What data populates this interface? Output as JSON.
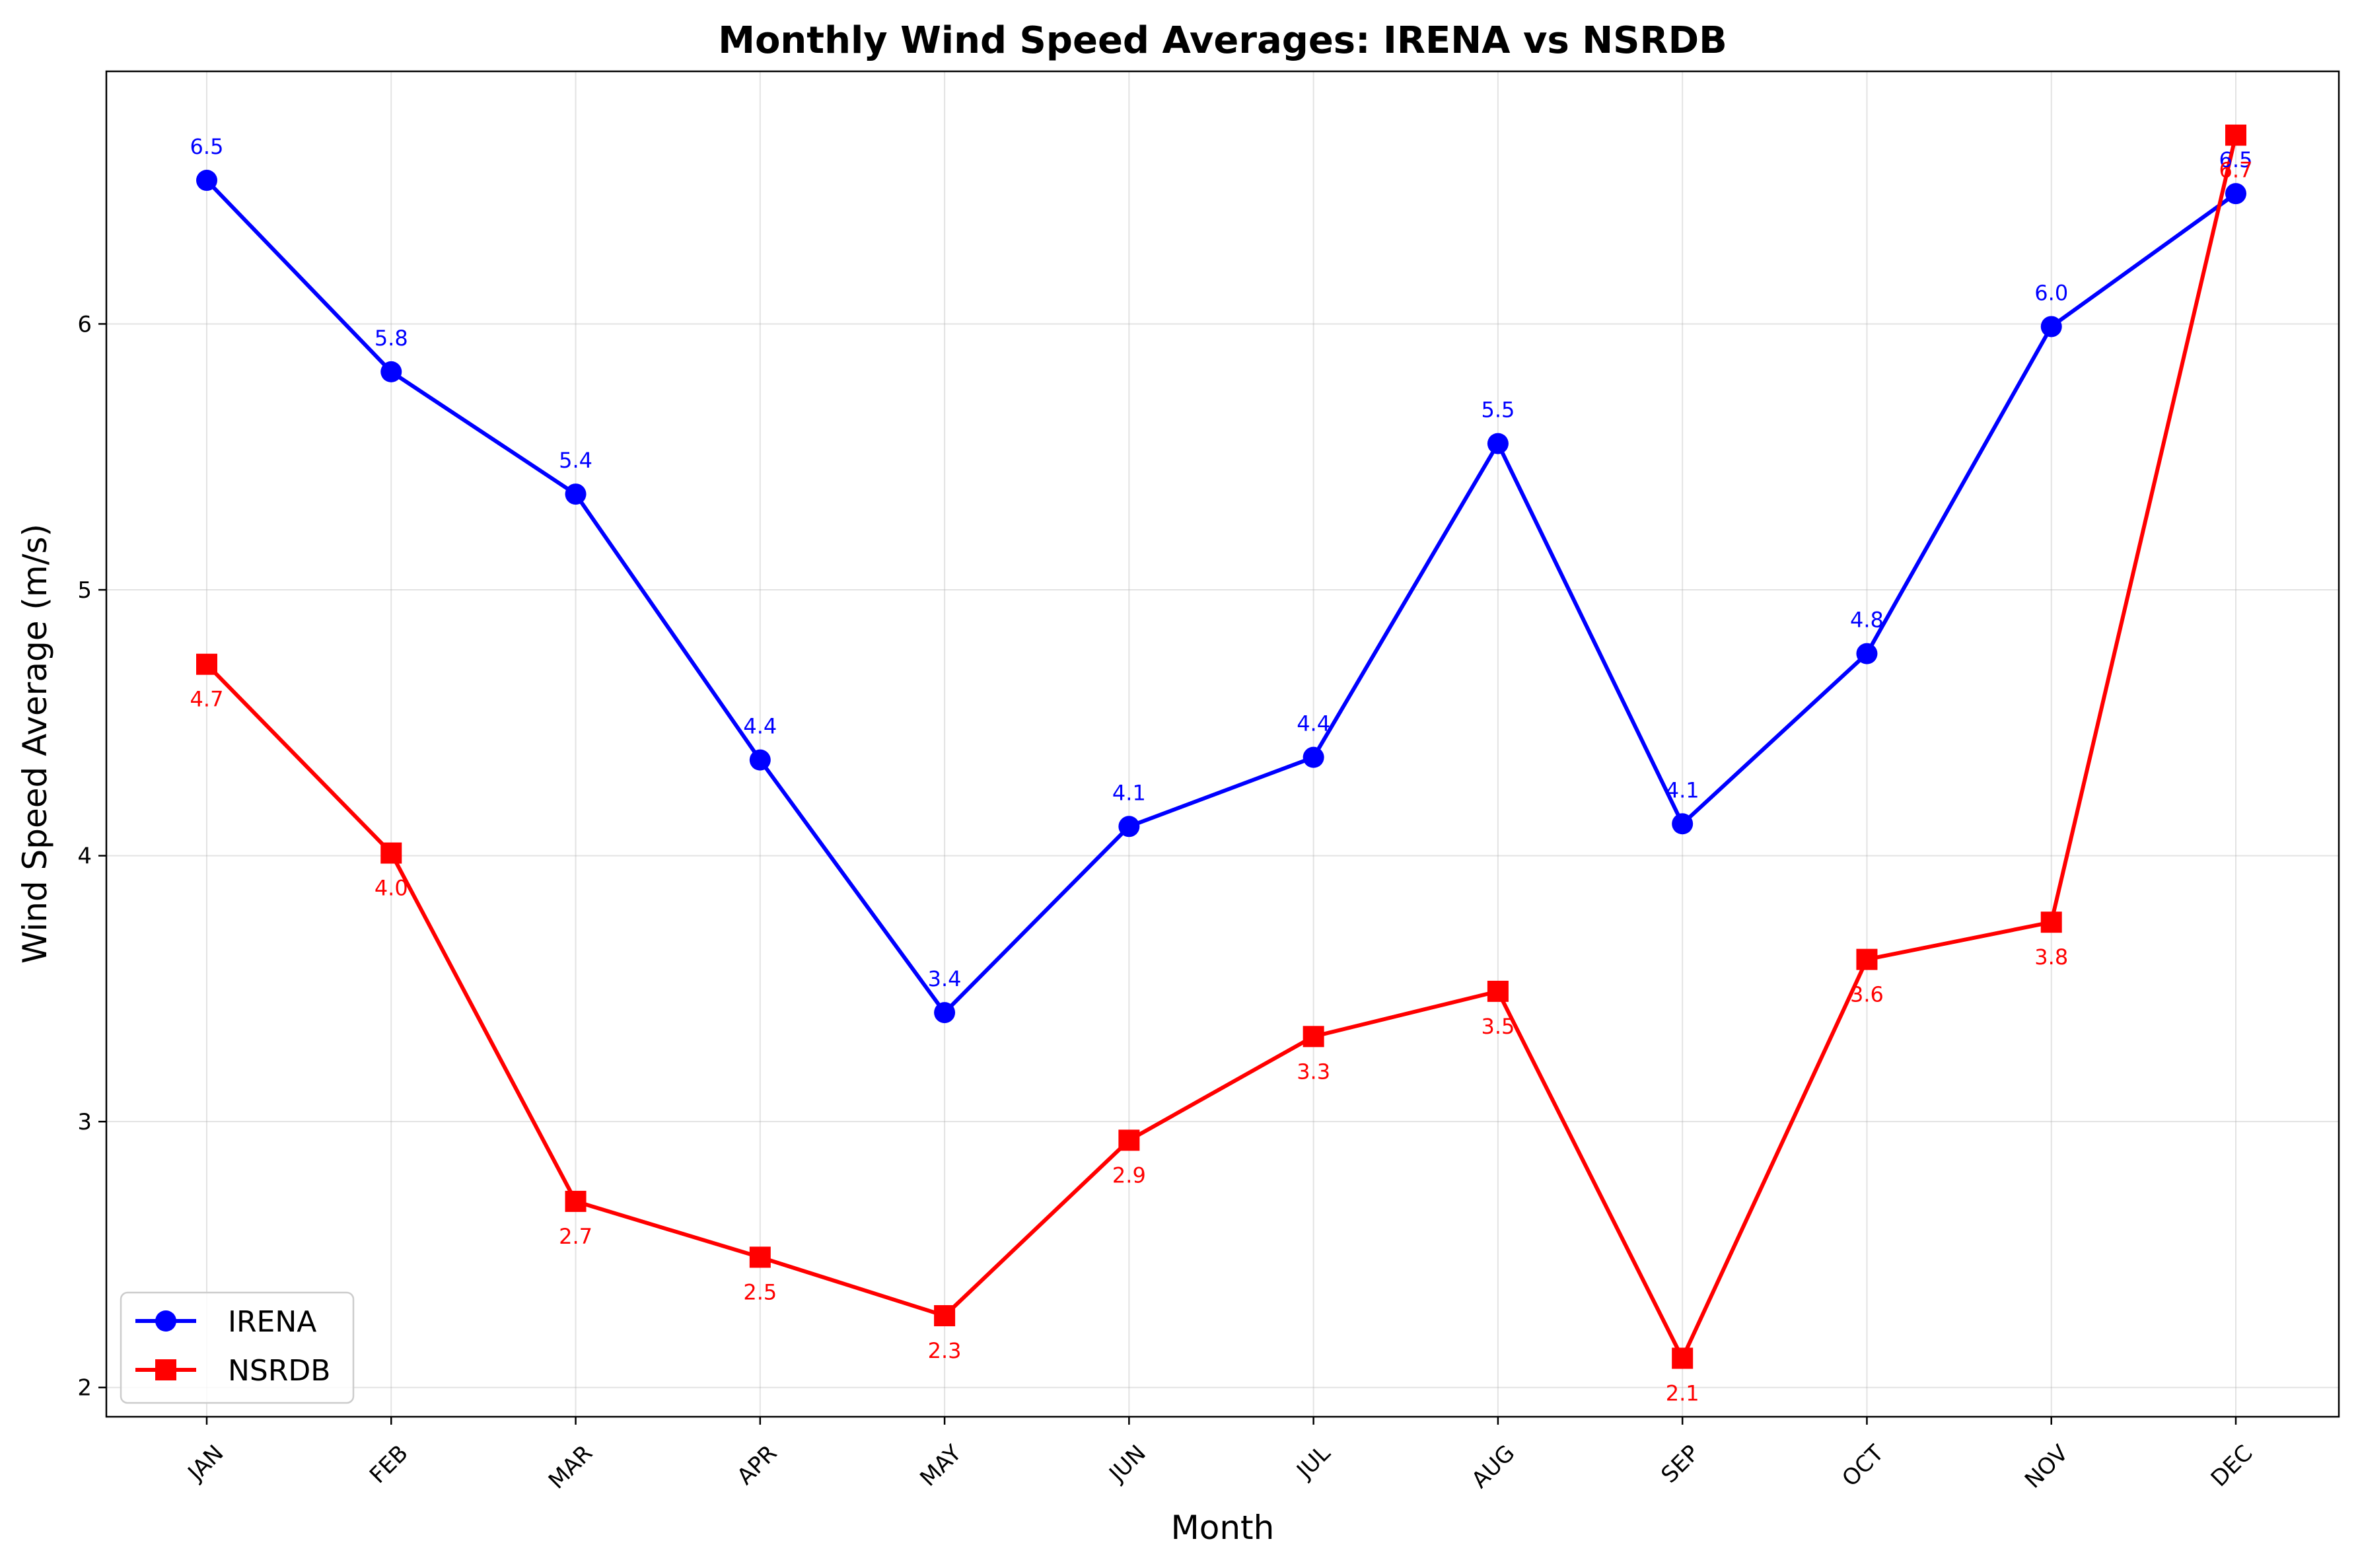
{
  "chart_data": {
    "type": "line",
    "title": "Monthly Wind Speed Averages: IRENA vs NSRDB",
    "xlabel": "Month",
    "ylabel": "Wind Speed Average (m/s)",
    "categories": [
      "JAN",
      "FEB",
      "MAR",
      "APR",
      "MAY",
      "JUN",
      "JUL",
      "AUG",
      "SEP",
      "OCT",
      "NOV",
      "DEC"
    ],
    "ylim": [
      1.89,
      6.95
    ],
    "yticks": [
      2,
      3,
      4,
      5,
      6
    ],
    "grid": true,
    "legend_position": "bottom-left",
    "series": [
      {
        "name": "IRENA",
        "color": "#0000ff",
        "marker": "circle",
        "values": [
          6.54,
          5.82,
          5.36,
          4.36,
          3.41,
          4.11,
          4.37,
          5.55,
          4.12,
          4.76,
          5.99,
          6.49
        ],
        "labels": [
          "6.5",
          "5.8",
          "5.4",
          "4.4",
          "3.4",
          "4.1",
          "4.4",
          "5.5",
          "4.1",
          "4.8",
          "6.0",
          "6.5"
        ]
      },
      {
        "name": "NSRDB",
        "color": "#ff0000",
        "marker": "square",
        "values": [
          4.72,
          4.01,
          2.7,
          2.49,
          2.27,
          2.93,
          3.32,
          3.49,
          2.11,
          3.61,
          3.75,
          6.71
        ],
        "labels": [
          "4.7",
          "4.0",
          "2.7",
          "2.5",
          "2.3",
          "2.9",
          "3.3",
          "3.5",
          "2.1",
          "3.6",
          "3.8",
          "6.7"
        ]
      }
    ]
  }
}
